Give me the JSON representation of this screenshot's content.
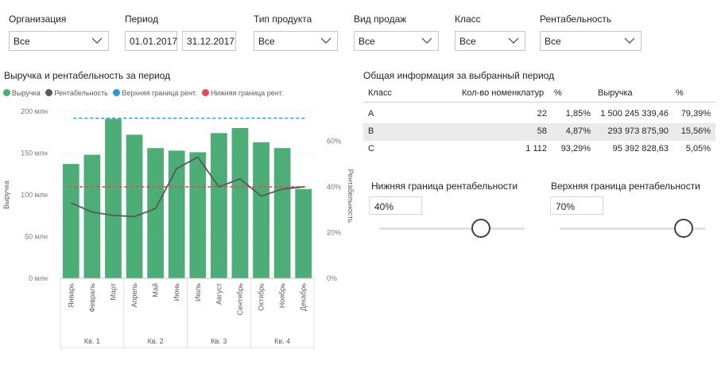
{
  "filters": {
    "organization": {
      "label": "Организация",
      "value": "Все"
    },
    "period": {
      "label": "Период",
      "start": "01.01.2017",
      "end": "31.12.2017"
    },
    "product_type": {
      "label": "Тип продукта",
      "value": "Все"
    },
    "sale_type": {
      "label": "Вид продаж",
      "value": "Все"
    },
    "class": {
      "label": "Класс",
      "value": "Все"
    },
    "profitability": {
      "label": "Рентабельность",
      "value": "Все"
    }
  },
  "chart_title": "Выручка и рентабельность за период",
  "legend": [
    {
      "label": "Выручка",
      "color": "#4cae76"
    },
    {
      "label": "Рентабельность",
      "color": "#555b58"
    },
    {
      "label": "Верхняя граница рент.",
      "color": "#2f96d8"
    },
    {
      "label": "Нижняя граница рент.",
      "color": "#e44c4c"
    }
  ],
  "chart_data": {
    "type": "bar",
    "categories": [
      "Январь",
      "Февраль",
      "Март",
      "Апрель",
      "Май",
      "Июнь",
      "Июль",
      "Август",
      "Сентябрь",
      "Октябрь",
      "Ноябрь",
      "Декабрь"
    ],
    "quarters": [
      "Кв. 1",
      "Кв. 2",
      "Кв. 3",
      "Кв. 4"
    ],
    "year": "2017",
    "series": [
      {
        "name": "Выручка",
        "axis": "left",
        "values": [
          137,
          148,
          191,
          172,
          156,
          153,
          151,
          174,
          180,
          163,
          156,
          107
        ]
      },
      {
        "name": "Рентабельность",
        "axis": "right",
        "values": [
          33,
          29,
          27.5,
          27,
          30.5,
          48,
          53,
          40,
          43.5,
          36,
          39,
          40
        ]
      },
      {
        "name": "Верхняя граница рент.",
        "axis": "right",
        "values": [
          70,
          70,
          70,
          70,
          70,
          70,
          70,
          70,
          70,
          70,
          70,
          70
        ]
      },
      {
        "name": "Нижняя граница рент.",
        "axis": "right",
        "values": [
          40,
          40,
          40,
          40,
          40,
          40,
          40,
          40,
          40,
          40,
          40,
          40
        ]
      }
    ],
    "ylabel": "Выручка",
    "y2label": "Рентабельность",
    "ylim": [
      0,
      200
    ],
    "y2lim": [
      0,
      73
    ],
    "yticks": [
      "0 млн",
      "50 млн",
      "100 млн",
      "150 млн",
      "200 млн"
    ],
    "y2ticks": [
      "0%",
      "20%",
      "40%",
      "60%"
    ],
    "colors": {
      "bar": "#4cae76",
      "line": "#555b58",
      "upper": "#2f96d8",
      "lower": "#e44c4c"
    }
  },
  "info": {
    "title": "Общая информация за выбранный период",
    "headers": [
      "Класс",
      "Кол-во номенклатур",
      "%",
      "Выручка",
      "%"
    ],
    "rows": [
      [
        "A",
        "22",
        "1,85%",
        "1 500 245 339,46",
        "79,39%"
      ],
      [
        "B",
        "58",
        "4,87%",
        "293 973 875,90",
        "15,56%"
      ],
      [
        "C",
        "1 112",
        "93,29%",
        "95 392 828,63",
        "5,05%"
      ]
    ]
  },
  "lower_bound": {
    "label": "Нижняя граница рентабельности",
    "value": "40%",
    "slider_fraction": 0.7
  },
  "upper_bound": {
    "label": "Верхняя граница рентабельности",
    "value": "70%",
    "slider_fraction": 0.85
  }
}
